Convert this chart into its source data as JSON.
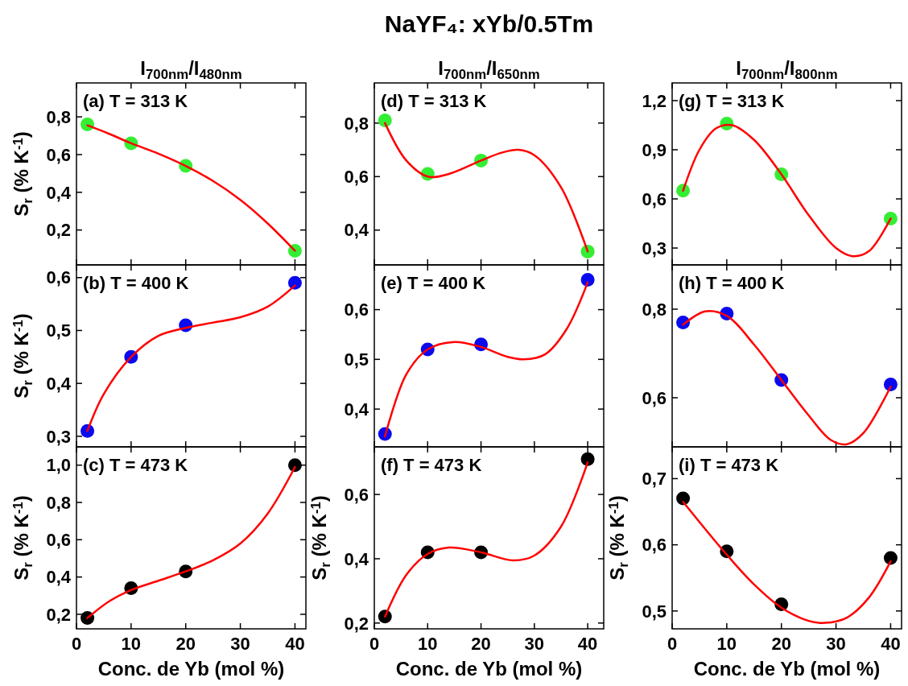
{
  "chart_data": [
    {
      "type": "scatter",
      "subtitle": "I$_{700nm}$/I$_{480nm}$",
      "ylabel": "S$_{r}$ (% K$^{-1}$)",
      "annotations": [
        "(a) T = 313 K"
      ],
      "x": [
        2,
        10,
        20,
        40
      ],
      "xlim": [
        0,
        42
      ],
      "xticks": [
        0,
        10,
        20,
        30,
        40
      ],
      "ylim": [
        0.015,
        0.98
      ],
      "yticks": [
        {
          "value": 0.2,
          "label": "0,2"
        },
        {
          "value": 0.4,
          "label": "0,4"
        },
        {
          "value": 0.6,
          "label": "0,6"
        },
        {
          "value": 0.8,
          "label": "0,8"
        }
      ],
      "tick_labels": "y",
      "series": [
        {
          "marker": "circle",
          "color": "#33ee33",
          "values": [
            0.76,
            0.66,
            0.54,
            0.09
          ]
        },
        {
          "type": "line",
          "marker": "none",
          "color": "#ff0000",
          "x": [
            2,
            6,
            10,
            15,
            20,
            25,
            30,
            35,
            40
          ],
          "values": [
            0.755,
            0.71,
            0.66,
            0.605,
            0.54,
            0.46,
            0.36,
            0.235,
            0.09
          ]
        }
      ]
    },
    {
      "type": "scatter",
      "title": "NaYF₄: xYb/0.5Tm",
      "subtitle": "I$_{700nm}$/I$_{650nm}$",
      "annotations": [
        "(d) T = 313 K"
      ],
      "x": [
        2,
        10,
        20,
        40
      ],
      "xlim": [
        0,
        43
      ],
      "xticks": [
        0,
        10,
        20,
        30,
        40
      ],
      "ylim": [
        0.27,
        0.95
      ],
      "yticks": [
        {
          "value": 0.4,
          "label": "0,4"
        },
        {
          "value": 0.6,
          "label": "0,6"
        },
        {
          "value": 0.8,
          "label": "0,8"
        }
      ],
      "tick_labels": "y",
      "series": [
        {
          "marker": "circle",
          "color": "#33ee33",
          "values": [
            0.81,
            0.61,
            0.66,
            0.32
          ]
        },
        {
          "type": "line",
          "marker": "none",
          "color": "#ff0000",
          "x": [
            2,
            6,
            10,
            14,
            20,
            24,
            27,
            30,
            35,
            40
          ],
          "values": [
            0.8,
            0.66,
            0.6,
            0.61,
            0.66,
            0.69,
            0.7,
            0.68,
            0.56,
            0.32
          ]
        }
      ]
    },
    {
      "type": "scatter",
      "subtitle": "I$_{700nm}$/I$_{800nm}$",
      "annotations": [
        "(g) T = 313 K"
      ],
      "x": [
        2,
        10,
        20,
        40
      ],
      "xlim": [
        0,
        42
      ],
      "xticks": [
        0,
        10,
        20,
        30,
        40
      ],
      "ylim": [
        0.197,
        1.308
      ],
      "yticks": [
        {
          "value": 0.3,
          "label": "0,3"
        },
        {
          "value": 0.6,
          "label": "0,6"
        },
        {
          "value": 0.9,
          "label": "0,9"
        },
        {
          "value": 1.2,
          "label": "1,2"
        }
      ],
      "tick_labels": "y",
      "series": [
        {
          "marker": "circle",
          "color": "#33ee33",
          "values": [
            0.65,
            1.06,
            0.75,
            0.48
          ]
        },
        {
          "type": "line",
          "marker": "none",
          "color": "#ff0000",
          "x": [
            2,
            5,
            8,
            11,
            15,
            20,
            25,
            30,
            33,
            36,
            40
          ],
          "values": [
            0.65,
            0.9,
            1.03,
            1.05,
            0.96,
            0.75,
            0.5,
            0.3,
            0.25,
            0.28,
            0.48
          ]
        }
      ]
    },
    {
      "type": "scatter",
      "ylabel": "S$_{r}$ (% K$^{-1}$)",
      "annotations": [
        "(b) T = 400 K"
      ],
      "x": [
        2,
        10,
        20,
        40
      ],
      "xlim": [
        0,
        42
      ],
      "xticks": [
        0,
        10,
        20,
        30,
        40
      ],
      "ylim": [
        0.28,
        0.624
      ],
      "yticks": [
        {
          "value": 0.3,
          "label": "0,3"
        },
        {
          "value": 0.4,
          "label": "0,4"
        },
        {
          "value": 0.5,
          "label": "0,5"
        },
        {
          "value": 0.6,
          "label": "0,6"
        }
      ],
      "tick_labels": "y",
      "series": [
        {
          "marker": "circle",
          "color": "#0a0aee",
          "values": [
            0.31,
            0.45,
            0.51,
            0.59
          ]
        },
        {
          "type": "line",
          "marker": "none",
          "color": "#ff0000",
          "x": [
            2,
            5,
            10,
            15,
            20,
            25,
            30,
            35,
            40
          ],
          "values": [
            0.31,
            0.38,
            0.45,
            0.49,
            0.505,
            0.515,
            0.525,
            0.545,
            0.585
          ]
        }
      ]
    },
    {
      "type": "scatter",
      "annotations": [
        "(e) T = 400 K"
      ],
      "x": [
        2,
        10,
        20,
        40
      ],
      "xlim": [
        0,
        43
      ],
      "xticks": [
        0,
        10,
        20,
        30,
        40
      ],
      "ylim": [
        0.324,
        0.69
      ],
      "yticks": [
        {
          "value": 0.4,
          "label": "0,4"
        },
        {
          "value": 0.5,
          "label": "0,5"
        },
        {
          "value": 0.6,
          "label": "0,6"
        }
      ],
      "tick_labels": "y",
      "series": [
        {
          "marker": "circle",
          "color": "#0a0aee",
          "values": [
            0.35,
            0.52,
            0.53,
            0.66
          ]
        },
        {
          "type": "line",
          "marker": "none",
          "color": "#ff0000",
          "x": [
            2,
            6,
            10,
            15,
            20,
            25,
            28,
            32,
            36,
            40
          ],
          "values": [
            0.345,
            0.47,
            0.52,
            0.535,
            0.525,
            0.505,
            0.5,
            0.51,
            0.56,
            0.655
          ]
        }
      ]
    },
    {
      "type": "scatter",
      "annotations": [
        "(h) T = 400 K"
      ],
      "x": [
        2,
        10,
        20,
        40
      ],
      "xlim": [
        0,
        42
      ],
      "xticks": [
        0,
        10,
        20,
        30,
        40
      ],
      "ylim": [
        0.489,
        0.9
      ],
      "yticks": [
        {
          "value": 0.6,
          "label": "0,6"
        },
        {
          "value": 0.8,
          "label": "0,8"
        }
      ],
      "tick_labels": "y",
      "series": [
        {
          "marker": "circle",
          "color": "#0a0aee",
          "values": [
            0.77,
            0.79,
            0.64,
            0.63
          ]
        },
        {
          "type": "line",
          "marker": "none",
          "color": "#ff0000",
          "x": [
            2,
            6,
            10,
            15,
            20,
            25,
            29,
            32,
            35,
            40
          ],
          "values": [
            0.765,
            0.795,
            0.785,
            0.72,
            0.64,
            0.56,
            0.505,
            0.495,
            0.52,
            0.625
          ]
        }
      ]
    },
    {
      "type": "scatter",
      "xlabel": "Conc. de Yb (mol %)",
      "ylabel": "S$_{r}$ (% K$^{-1}$)",
      "annotations": [
        "(c) T = 473 K"
      ],
      "x": [
        2,
        10,
        20,
        40
      ],
      "xlim": [
        0,
        42
      ],
      "xticks": [
        0,
        10,
        20,
        30,
        40
      ],
      "ylim": [
        0.122,
        1.098
      ],
      "yticks": [
        {
          "value": 0.2,
          "label": "0,2"
        },
        {
          "value": 0.4,
          "label": "0,4"
        },
        {
          "value": 0.6,
          "label": "0,6"
        },
        {
          "value": 0.8,
          "label": "0,8"
        },
        {
          "value": 1.0,
          "label": "1,0"
        }
      ],
      "series": [
        {
          "marker": "circle",
          "color": "#000000",
          "values": [
            0.18,
            0.34,
            0.43,
            1.0
          ]
        },
        {
          "type": "line",
          "marker": "none",
          "color": "#ff0000",
          "x": [
            2,
            6,
            10,
            15,
            20,
            25,
            30,
            35,
            40
          ],
          "values": [
            0.18,
            0.27,
            0.33,
            0.38,
            0.43,
            0.49,
            0.58,
            0.74,
            0.99
          ]
        }
      ]
    },
    {
      "type": "scatter",
      "xlabel": "Conc. de Yb (mol %)",
      "ylabel": "S$_{r}$ (% K$^{-1}$)",
      "annotations": [
        "(f)  T = 473 K"
      ],
      "x": [
        2,
        10,
        20,
        40
      ],
      "xlim": [
        0,
        43
      ],
      "xticks": [
        0,
        10,
        20,
        30,
        40
      ],
      "ylim": [
        0.182,
        0.748
      ],
      "yticks": [
        {
          "value": 0.2,
          "label": "0,2"
        },
        {
          "value": 0.4,
          "label": "0,4"
        },
        {
          "value": 0.6,
          "label": "0,6"
        }
      ],
      "series": [
        {
          "marker": "circle",
          "color": "#000000",
          "values": [
            0.22,
            0.42,
            0.42,
            0.71
          ]
        },
        {
          "type": "line",
          "marker": "none",
          "color": "#ff0000",
          "x": [
            2,
            6,
            10,
            14,
            20,
            26,
            30,
            35,
            40
          ],
          "values": [
            0.22,
            0.35,
            0.415,
            0.435,
            0.42,
            0.395,
            0.41,
            0.5,
            0.7
          ]
        }
      ]
    },
    {
      "type": "scatter",
      "xlabel": "Conc. de Yb (mol %)",
      "ylabel": "S$_{r}$ (% K$^{-1}$)",
      "annotations": [
        "(i)  T = 473 K"
      ],
      "x": [
        2,
        10,
        20,
        40
      ],
      "xlim": [
        0,
        42
      ],
      "xticks": [
        0,
        10,
        20,
        30,
        40
      ],
      "ylim": [
        0.473,
        0.748
      ],
      "yticks": [
        {
          "value": 0.5,
          "label": "0,5"
        },
        {
          "value": 0.6,
          "label": "0,6"
        },
        {
          "value": 0.7,
          "label": "0,7"
        }
      ],
      "series": [
        {
          "marker": "circle",
          "color": "#000000",
          "values": [
            0.67,
            0.59,
            0.51,
            0.58
          ]
        },
        {
          "type": "line",
          "marker": "none",
          "color": "#ff0000",
          "x": [
            2,
            10,
            15,
            20,
            25,
            28,
            32,
            36,
            40
          ],
          "values": [
            0.665,
            0.585,
            0.54,
            0.505,
            0.485,
            0.482,
            0.49,
            0.52,
            0.575
          ]
        }
      ]
    }
  ]
}
